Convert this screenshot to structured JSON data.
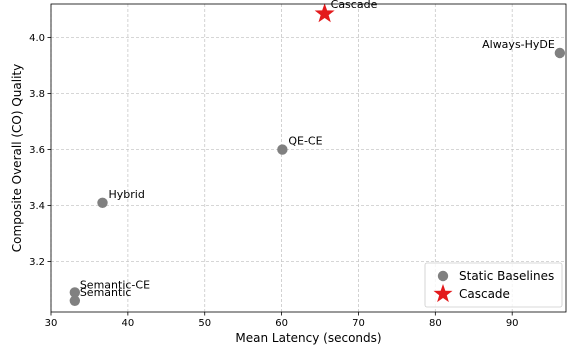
{
  "chart_data": {
    "type": "scatter",
    "title": "",
    "xlabel": "Mean Latency (seconds)",
    "ylabel": "Composite Overall (CO) Quality",
    "xlim": [
      30,
      97
    ],
    "ylim": [
      3.02,
      4.12
    ],
    "xticks": [
      30,
      40,
      50,
      60,
      70,
      80,
      90
    ],
    "yticks": [
      3.2,
      3.4,
      3.6,
      3.8,
      4.0
    ],
    "xtick_labels": [
      "30",
      "40",
      "50",
      "60",
      "70",
      "80",
      "90"
    ],
    "ytick_labels": [
      "3.2",
      "3.4",
      "3.6",
      "3.8",
      "4.0"
    ],
    "grid": true,
    "legend_position": "bottom-right",
    "series": [
      {
        "name": "Static Baselines",
        "marker": "circle",
        "color": "#808080",
        "points": [
          {
            "label": "Semantic-CE",
            "x": 33.1,
            "y": 3.09
          },
          {
            "label": "Semantic",
            "x": 33.1,
            "y": 3.06
          },
          {
            "label": "Hybrid",
            "x": 36.7,
            "y": 3.41
          },
          {
            "label": "QE-CE",
            "x": 60.1,
            "y": 3.6
          },
          {
            "label": "Always-HyDE",
            "x": 96.2,
            "y": 3.945
          }
        ]
      },
      {
        "name": "Cascade",
        "marker": "star",
        "color": "#e31a1c",
        "points": [
          {
            "label": "Cascade",
            "x": 65.6,
            "y": 4.085
          }
        ]
      }
    ]
  }
}
